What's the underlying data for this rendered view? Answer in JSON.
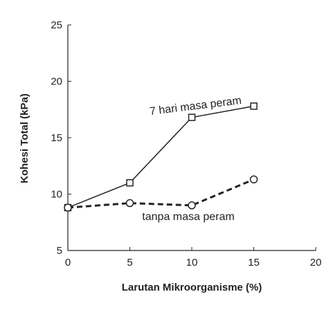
{
  "chart_data": {
    "type": "line",
    "x_label": "Larutan Mikroorganisme (%)",
    "y_label": "Kohesi Total (kPa)",
    "xlim": [
      0,
      20
    ],
    "xticks": [
      0,
      5,
      10,
      15,
      20
    ],
    "ylim": [
      5,
      25
    ],
    "yticks": [
      5,
      10,
      15,
      20,
      25
    ],
    "x": [
      0,
      5,
      10,
      15
    ],
    "series": [
      {
        "name": "7 hari masa peram",
        "color": "#222222",
        "marker": "square",
        "dashed": false,
        "values": [
          8.8,
          11.0,
          16.8,
          17.8
        ]
      },
      {
        "name": "tanpa masa peram",
        "color": "#222222",
        "marker": "circle",
        "dashed": true,
        "values": [
          8.8,
          9.2,
          9.0,
          11.3
        ]
      }
    ]
  }
}
